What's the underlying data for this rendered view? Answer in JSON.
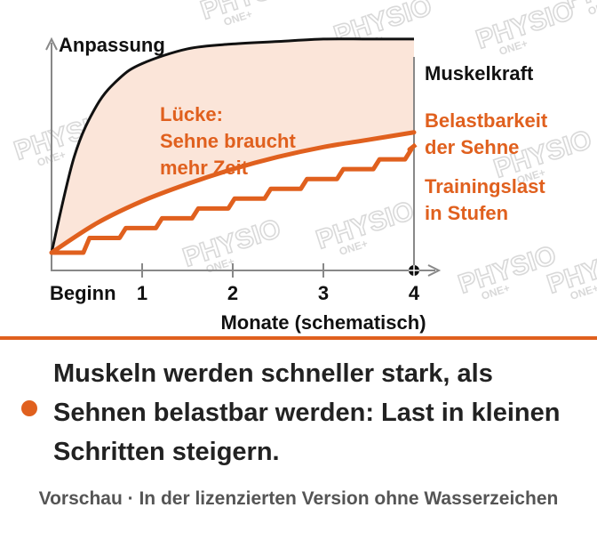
{
  "colors": {
    "accent": "#e0601e",
    "muscle_line": "#111111",
    "gap_fill": "#fbe5d9",
    "axis": "#888888",
    "text_dark": "#111111",
    "footer_text": "#555555",
    "watermark": "#d9d9d9"
  },
  "chart_data": {
    "type": "line",
    "ylabel": "Anpassung",
    "xlabel": "Monate (schematisch)",
    "x_ticks": [
      "Beginn",
      "1",
      "2",
      "3",
      "4"
    ],
    "x_tick_values": [
      0,
      1,
      2,
      3,
      4
    ],
    "xlim": [
      0,
      4
    ],
    "ylim": [
      0,
      1
    ],
    "grid": false,
    "series": [
      {
        "name": "Muskelkraft",
        "color": "#111111",
        "x": [
          0,
          0.25,
          0.5,
          0.75,
          1,
          1.5,
          2,
          2.5,
          3,
          3.5,
          4
        ],
        "y": [
          0.0,
          0.39,
          0.6,
          0.71,
          0.77,
          0.83,
          0.85,
          0.86,
          0.87,
          0.87,
          0.87
        ]
      },
      {
        "name": "Belastbarkeit der Sehne",
        "color": "#e0601e",
        "x": [
          0,
          0.5,
          1,
          1.5,
          2,
          2.5,
          3,
          3.5,
          4
        ],
        "y": [
          0.0,
          0.12,
          0.21,
          0.28,
          0.34,
          0.39,
          0.43,
          0.46,
          0.49
        ]
      },
      {
        "name": "Trainingslast in Stufen",
        "color": "#e0601e",
        "step": true,
        "x": [
          0,
          0.4,
          0.8,
          1.2,
          1.6,
          2.0,
          2.4,
          2.8,
          3.2,
          3.6,
          3.95,
          4.0
        ],
        "y": [
          0.0,
          0.06,
          0.1,
          0.14,
          0.18,
          0.22,
          0.26,
          0.3,
          0.34,
          0.38,
          0.42,
          0.44
        ]
      }
    ],
    "annotations": [
      {
        "text": [
          "Lücke:",
          "Sehne braucht",
          "mehr Zeit"
        ],
        "color": "#e0601e"
      }
    ]
  },
  "message": "Muskeln werden schneller stark, als Sehnen belastbar werden: Last in kleinen Schritten steigern.",
  "footer": "Vorschau · In der lizenzierten Version ohne Wasserzeichen",
  "watermark": {
    "text": "PHYSIO",
    "sub": "ONE+"
  }
}
